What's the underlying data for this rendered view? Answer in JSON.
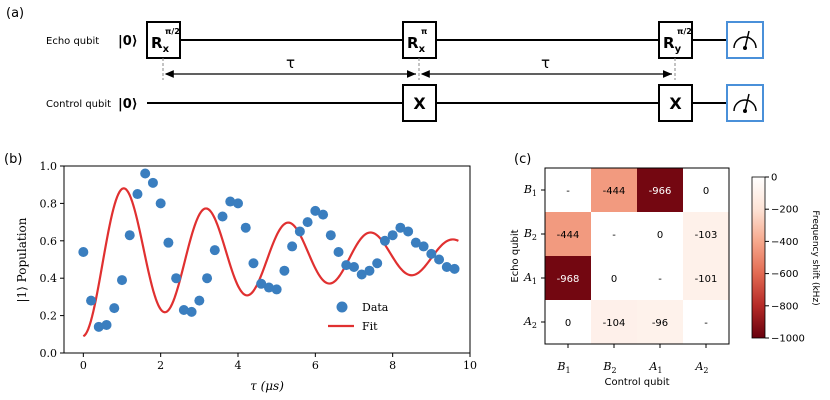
{
  "panels": {
    "a": "(a)",
    "b": "(b)",
    "c": "(c)"
  },
  "circuit": {
    "echo_label": "Echo qubit",
    "control_label": "Control qubit",
    "ket": "|0⟩",
    "gates_echo": [
      {
        "base": "R",
        "sub": "x",
        "sup": "π/2"
      },
      {
        "base": "R",
        "sub": "x",
        "sup": "π"
      },
      {
        "base": "R",
        "sub": "y",
        "sup": "π/2"
      }
    ],
    "gates_control": [
      "X",
      "X"
    ],
    "tau": "τ",
    "colors": {
      "meter": "#4a90d9"
    }
  },
  "chart_data": [
    {
      "type": "scatter",
      "ylabel": "|1⟩ Population",
      "xlabel": "τ (μs)",
      "xlim": [
        -0.5,
        10
      ],
      "ylim": [
        0,
        1.0
      ],
      "xticks": [
        "0",
        "2",
        "4",
        "6",
        "8",
        "10"
      ],
      "yticks": [
        "0.0",
        "0.2",
        "0.4",
        "0.6",
        "0.8",
        "1.0"
      ],
      "legend": {
        "position": "lower-right",
        "data": "Data",
        "fit": "Fit"
      },
      "series": [
        {
          "name": "Data",
          "color": "#3a7ebf",
          "x": [
            0.0,
            0.2,
            0.4,
            0.6,
            0.8,
            1.0,
            1.2,
            1.4,
            1.6,
            1.8,
            2.0,
            2.2,
            2.4,
            2.6,
            2.8,
            3.0,
            3.2,
            3.4,
            3.6,
            3.8,
            4.0,
            4.2,
            4.4,
            4.6,
            4.8,
            5.0,
            5.2,
            5.4,
            5.6,
            5.8,
            6.0,
            6.2,
            6.4,
            6.6,
            6.8,
            7.0,
            7.2,
            7.4,
            7.6,
            7.8,
            8.0,
            8.2,
            8.4,
            8.6,
            8.8,
            9.0,
            9.2,
            9.4,
            9.6
          ],
          "y": [
            0.54,
            0.28,
            0.14,
            0.15,
            0.24,
            0.39,
            0.63,
            0.85,
            0.96,
            0.91,
            0.8,
            0.59,
            0.4,
            0.23,
            0.22,
            0.28,
            0.4,
            0.55,
            0.73,
            0.81,
            0.8,
            0.67,
            0.48,
            0.37,
            0.35,
            0.34,
            0.44,
            0.57,
            0.65,
            0.7,
            0.76,
            0.74,
            0.63,
            0.54,
            0.47,
            0.46,
            0.42,
            0.44,
            0.48,
            0.6,
            0.63,
            0.67,
            0.65,
            0.59,
            0.57,
            0.53,
            0.5,
            0.46,
            0.45
          ]
        },
        {
          "name": "Fit",
          "color": "#e03030",
          "model": {
            "offset": 0.52,
            "amplitude": 0.43,
            "decay": 6.0,
            "frequency": 0.47,
            "phase": 3.14159
          }
        }
      ]
    },
    {
      "type": "heatmap",
      "xlabel": "Control qubit",
      "ylabel": "Echo qubit",
      "xlabels": [
        {
          "base": "B",
          "sub": "1"
        },
        {
          "base": "B",
          "sub": "2"
        },
        {
          "base": "A",
          "sub": "1"
        },
        {
          "base": "A",
          "sub": "2"
        }
      ],
      "ylabels": [
        {
          "base": "B",
          "sub": "1"
        },
        {
          "base": "B",
          "sub": "2"
        },
        {
          "base": "A",
          "sub": "1"
        },
        {
          "base": "A",
          "sub": "2"
        }
      ],
      "values": [
        [
          null,
          -444,
          -966,
          0
        ],
        [
          -444,
          null,
          0,
          -103
        ],
        [
          -968,
          0,
          null,
          -101
        ],
        [
          0,
          -104,
          -96,
          null
        ]
      ],
      "diagonal_label": "-",
      "colorbar": {
        "label": "Frequency shift (kHz)",
        "range": [
          -1000,
          0
        ],
        "ticks": [
          "0",
          "−200",
          "−400",
          "−600",
          "−800",
          "−1000"
        ]
      }
    }
  ]
}
